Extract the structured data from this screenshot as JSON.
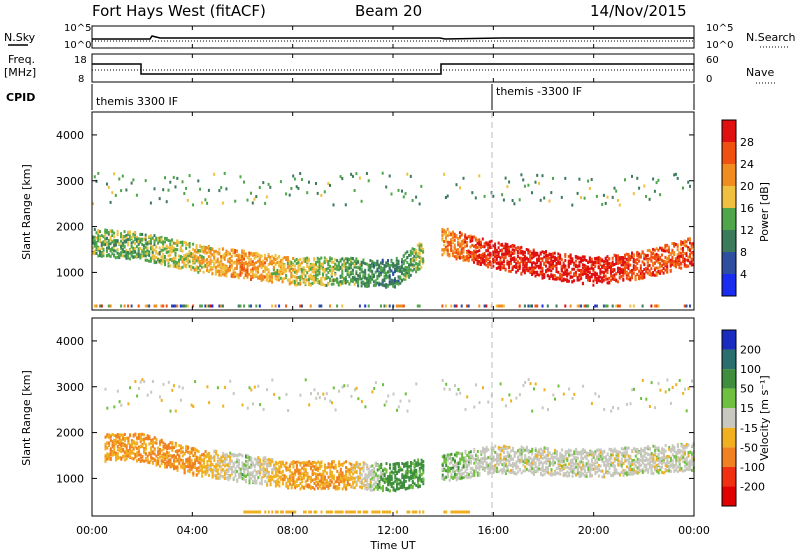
{
  "header": {
    "radar": "Fort Hays West (fitACF)",
    "beam": "Beam 20",
    "date": "14/Nov/2015"
  },
  "panels": {
    "nsky_label": "N.Sky",
    "nsearch_label": "N.Search",
    "freq_label_1": "Freq.",
    "freq_label_2": "[MHz]",
    "nave_label": "Nave",
    "cpid_label": "CPID",
    "cpid_segments": [
      "themis 3300 IF",
      "themis -3300 IF"
    ],
    "nsky_ticks": [
      "10^5",
      "10^0"
    ],
    "nsearch_ticks": [
      "10^5",
      "10^0"
    ],
    "freq_ticks": [
      "18",
      "8"
    ],
    "nave_ticks": [
      "60",
      "0"
    ]
  },
  "axes": {
    "x_ticks": [
      "00:00",
      "04:00",
      "08:00",
      "12:00",
      "16:00",
      "20:00",
      "00:00"
    ],
    "x_label": "Time UT",
    "y_label": "Slant Range [km]",
    "y_ticks": [
      "1000",
      "2000",
      "3000",
      "4000"
    ]
  },
  "colorbars": {
    "power": {
      "title": "Power [dB]",
      "labels": [
        "4",
        "8",
        "12",
        "16",
        "20",
        "24",
        "28"
      ],
      "colors": [
        "#1a2cf0",
        "#2e4fa0",
        "#3b7a5a",
        "#4fa64a",
        "#f0c040",
        "#f08c20",
        "#f05010",
        "#e01010"
      ]
    },
    "velocity": {
      "title": "Velocity [m s⁻¹]",
      "labels": [
        "200",
        "100",
        "50",
        "15",
        "-15",
        "-50",
        "-100",
        "-200"
      ],
      "colors": [
        "#1a2cc0",
        "#2a6e6e",
        "#3e8e3e",
        "#70c040",
        "#c8c8c0",
        "#f0b020",
        "#f08020",
        "#f03010",
        "#e00000"
      ]
    }
  },
  "chart_data": {
    "type": "heatmap",
    "title": "Fort Hays West (fitACF) Beam 20 14/Nov/2015",
    "xlabel": "Time UT",
    "ylabel": "Slant Range [km]",
    "xlim": [
      "00:00",
      "24:00"
    ],
    "ylim": [
      180,
      4500
    ],
    "frequency_mhz": [
      {
        "time": "00:00",
        "value": 13
      },
      {
        "time": "02:00",
        "value": 10
      },
      {
        "time": "14:00",
        "value": 14
      },
      {
        "time": "24:00",
        "value": 14
      }
    ],
    "cpid_changes": [
      {
        "time": "00:00",
        "label": "themis 3300 IF"
      },
      {
        "time": "16:00",
        "label": "themis -3300 IF"
      }
    ],
    "power_band": [
      {
        "time": "00:00",
        "range": 1700,
        "power": 12
      },
      {
        "time": "02:00",
        "range": 1600,
        "power": 12
      },
      {
        "time": "04:00",
        "range": 1350,
        "power": 16
      },
      {
        "time": "06:00",
        "range": 1200,
        "power": 20
      },
      {
        "time": "08:00",
        "range": 1050,
        "power": 16
      },
      {
        "time": "10:00",
        "range": 1050,
        "power": 12
      },
      {
        "time": "12:00",
        "range": 1000,
        "power": 8
      },
      {
        "time": "14:00",
        "range": 1700,
        "power": 20
      },
      {
        "time": "16:00",
        "range": 1400,
        "power": 28
      },
      {
        "time": "18:00",
        "range": 1200,
        "power": 28
      },
      {
        "time": "20:00",
        "range": 1050,
        "power": 28
      },
      {
        "time": "22:00",
        "range": 1200,
        "power": 24
      },
      {
        "time": "24:00",
        "range": 1500,
        "power": 24
      }
    ],
    "velocity_band": [
      {
        "time": "02:00",
        "range": 1700,
        "velocity": -50
      },
      {
        "time": "04:00",
        "range": 1400,
        "velocity": -50
      },
      {
        "time": "06:00",
        "range": 1250,
        "velocity": 15
      },
      {
        "time": "08:00",
        "range": 1100,
        "velocity": -50
      },
      {
        "time": "10:00",
        "range": 1100,
        "velocity": -50
      },
      {
        "time": "12:00",
        "range": 1050,
        "velocity": 50
      },
      {
        "time": "16:00",
        "range": 1450,
        "velocity": 0
      },
      {
        "time": "20:00",
        "range": 1350,
        "velocity": 0
      },
      {
        "time": "24:00",
        "range": 1500,
        "velocity": 0
      }
    ]
  }
}
